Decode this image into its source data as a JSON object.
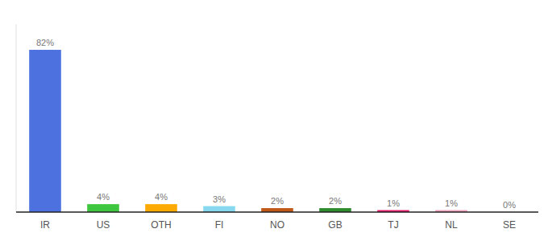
{
  "chart_data": {
    "type": "bar",
    "categories": [
      "IR",
      "US",
      "OTH",
      "FI",
      "NO",
      "GB",
      "TJ",
      "NL",
      "SE"
    ],
    "values": [
      82,
      4,
      4,
      3,
      2,
      2,
      1,
      1,
      0
    ],
    "value_labels": [
      "82%",
      "4%",
      "4%",
      "3%",
      "2%",
      "2%",
      "1%",
      "1%",
      "0%"
    ],
    "colors": [
      "#4d72e0",
      "#3ec63e",
      "#ffaa00",
      "#88d8f0",
      "#c05818",
      "#2e8b2e",
      "#e8186c",
      "#f0a0b8",
      "#cccccc"
    ],
    "ylim": [
      0,
      95
    ],
    "grid": false,
    "data_labels": true,
    "tick_labels": "x"
  }
}
